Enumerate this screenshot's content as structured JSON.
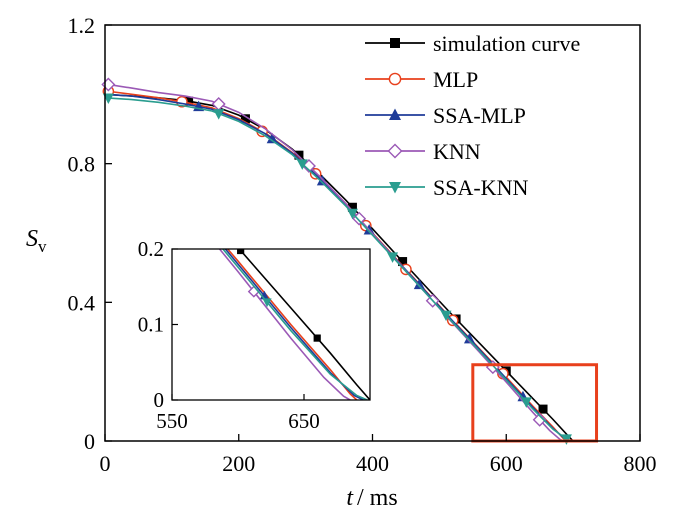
{
  "chart_data": {
    "type": "line",
    "xlabel_var": "t",
    "xlabel_unit": "/ ms",
    "ylabel_var": "S",
    "ylabel_sub": "v",
    "xlim": [
      0,
      800
    ],
    "ylim": [
      0,
      1.2
    ],
    "xticks": [
      0,
      200,
      400,
      600,
      800
    ],
    "yticks": [
      0,
      0.4,
      0.8,
      1.2
    ],
    "xtick_labels": [
      "0",
      "200",
      "400",
      "600",
      "800"
    ],
    "ytick_labels": [
      "0",
      "0.4",
      "0.8",
      "1.2"
    ],
    "grid": false,
    "legend_position": "top-right",
    "series": [
      {
        "name": "simulation curve",
        "color": "#000000",
        "marker": "filled-square",
        "x": [
          0,
          40,
          80,
          120,
          160,
          200,
          240,
          280,
          320,
          360,
          400,
          440,
          480,
          520,
          560,
          600,
          640,
          670,
          690,
          700
        ],
        "y": [
          1.0,
          0.995,
          0.99,
          0.982,
          0.968,
          0.94,
          0.898,
          0.842,
          0.772,
          0.695,
          0.612,
          0.528,
          0.445,
          0.362,
          0.282,
          0.202,
          0.122,
          0.062,
          0.02,
          0.0
        ],
        "marker_x": [
          125,
          210,
          290,
          370,
          445,
          525,
          600,
          655
        ]
      },
      {
        "name": "MLP",
        "color": "#E8401C",
        "marker": "open-circle",
        "x": [
          0,
          40,
          80,
          120,
          160,
          200,
          240,
          280,
          320,
          360,
          400,
          440,
          480,
          520,
          560,
          600,
          640,
          670,
          685,
          690
        ],
        "y": [
          1.01,
          1.0,
          0.99,
          0.977,
          0.961,
          0.93,
          0.888,
          0.832,
          0.762,
          0.685,
          0.6,
          0.516,
          0.432,
          0.348,
          0.266,
          0.184,
          0.1,
          0.04,
          0.008,
          0.0
        ],
        "marker_x": [
          5,
          115,
          235,
          315,
          390,
          450,
          520,
          595
        ]
      },
      {
        "name": "SSA-MLP",
        "color": "#1F3C99",
        "marker": "filled-triangle-up",
        "x": [
          0,
          40,
          80,
          120,
          160,
          200,
          240,
          280,
          320,
          360,
          400,
          440,
          480,
          520,
          560,
          600,
          640,
          670,
          688,
          695
        ],
        "y": [
          1.0,
          0.995,
          0.985,
          0.972,
          0.957,
          0.927,
          0.886,
          0.83,
          0.76,
          0.683,
          0.598,
          0.514,
          0.43,
          0.346,
          0.264,
          0.18,
          0.096,
          0.036,
          0.006,
          0.0
        ],
        "marker_x": [
          140,
          250,
          325,
          395,
          470,
          545,
          625
        ]
      },
      {
        "name": "KNN",
        "color": "#9B59B6",
        "marker": "open-diamond",
        "x": [
          0,
          40,
          80,
          120,
          160,
          200,
          240,
          280,
          320,
          360,
          400,
          440,
          480,
          520,
          560,
          600,
          640,
          665,
          680,
          685
        ],
        "y": [
          1.03,
          1.018,
          1.005,
          0.995,
          0.98,
          0.948,
          0.9,
          0.84,
          0.765,
          0.685,
          0.598,
          0.512,
          0.426,
          0.34,
          0.256,
          0.17,
          0.082,
          0.03,
          0.005,
          0.0
        ],
        "marker_x": [
          5,
          170,
          305,
          380,
          490,
          580,
          650
        ]
      },
      {
        "name": "SSA-KNN",
        "color": "#2A9D8F",
        "marker": "filled-triangle-down",
        "x": [
          0,
          40,
          80,
          120,
          160,
          200,
          240,
          280,
          320,
          360,
          400,
          440,
          480,
          520,
          560,
          600,
          640,
          670,
          690,
          698
        ],
        "y": [
          0.99,
          0.985,
          0.977,
          0.966,
          0.952,
          0.922,
          0.88,
          0.826,
          0.755,
          0.678,
          0.594,
          0.51,
          0.426,
          0.342,
          0.26,
          0.176,
          0.092,
          0.034,
          0.006,
          0.0
        ],
        "marker_x": [
          5,
          170,
          295,
          370,
          430,
          510,
          630,
          690
        ]
      }
    ],
    "highlight_box": {
      "x": [
        550,
        735
      ],
      "y": [
        0,
        0.22
      ],
      "color": "#E8401C"
    },
    "inset": {
      "xlim": [
        550,
        700
      ],
      "ylim": [
        0,
        0.2
      ],
      "xticks": [
        550,
        650
      ],
      "yticks": [
        0,
        0.1,
        0.2
      ],
      "xtick_labels": [
        "550",
        "650"
      ],
      "ytick_labels": [
        "0",
        "0.1",
        "0.2"
      ]
    }
  }
}
